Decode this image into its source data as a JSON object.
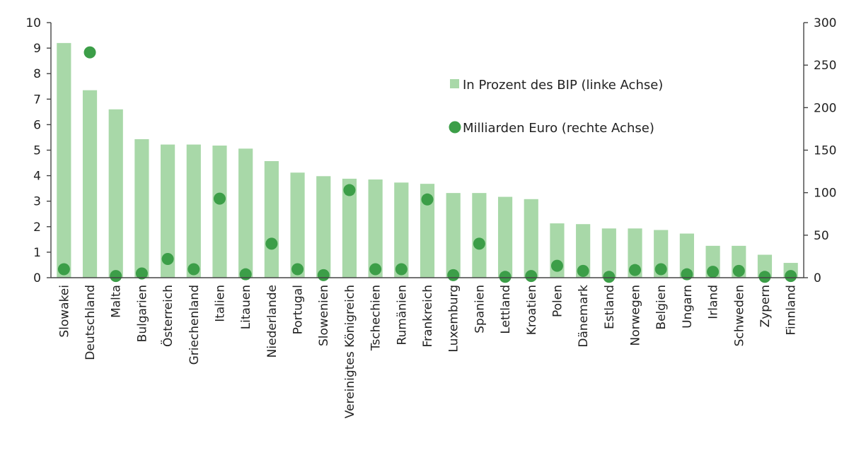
{
  "colors": {
    "bar": "#a8d8a8",
    "dot": "#3c9e48",
    "axis": "#444444",
    "text": "#222222"
  },
  "chart_data": {
    "type": "bar",
    "title": "",
    "xlabel": "",
    "ylabel": "",
    "y2label": "",
    "grid": false,
    "legend_position": "top-right",
    "categories": [
      "Slowakei",
      "Deutschland",
      "Malta",
      "Bulgarien",
      "Österreich",
      "Griechenland",
      "Italien",
      "Litauen",
      "Niederlande",
      "Portugal",
      "Slowenien",
      "Vereinigtes Königreich",
      "Tschechien",
      "Rumänien",
      "Frankreich",
      "Luxemburg",
      "Spanien",
      "Lettland",
      "Kroatien",
      "Polen",
      "Dänemark",
      "Estland",
      "Norwegen",
      "Belgien",
      "Ungarn",
      "Irland",
      "Schweden",
      "Zypern",
      "Finnland"
    ],
    "ylim": [
      0,
      10
    ],
    "yticks": [
      "0",
      "1",
      "2",
      "3",
      "4",
      "5",
      "6",
      "7",
      "8",
      "9",
      "10"
    ],
    "y2lim": [
      0,
      300
    ],
    "y2ticks": [
      "0",
      "50",
      "100",
      "150",
      "200",
      "250",
      "300"
    ],
    "series": [
      {
        "name": "In Prozent des BIP (linke Achse)",
        "type": "bar",
        "axis": "left",
        "values": [
          9.2,
          7.35,
          6.6,
          5.43,
          5.22,
          5.22,
          5.18,
          5.06,
          4.57,
          4.12,
          3.98,
          3.88,
          3.85,
          3.73,
          3.68,
          3.32,
          3.32,
          3.17,
          3.08,
          2.13,
          2.1,
          1.93,
          1.93,
          1.87,
          1.73,
          1.25,
          1.25,
          0.9,
          0.58
        ]
      },
      {
        "name": "Milliarden Euro (rechte Achse)",
        "type": "scatter",
        "axis": "right",
        "values": [
          10,
          265,
          2,
          5,
          22,
          10,
          93,
          4,
          40,
          10,
          3,
          103,
          10,
          10,
          92,
          3,
          40,
          1,
          2,
          14,
          8,
          1,
          9,
          10,
          4,
          7,
          8,
          1,
          2
        ]
      }
    ]
  }
}
